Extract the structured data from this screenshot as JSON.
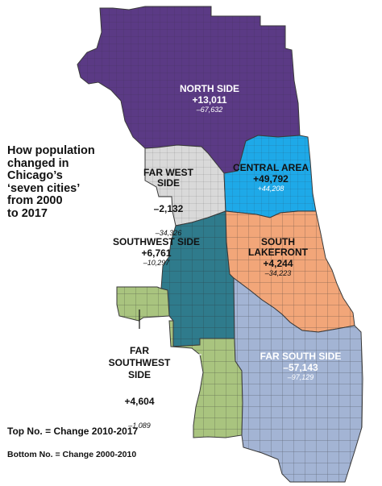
{
  "headline": "How population\nchanged in\nChicago’s\n‘seven cities’\nfrom 2000\nto 2017",
  "legend": {
    "top": "Top No. = Change 2010-2017",
    "bottom": "Bottom No. = Change 2000-2010"
  },
  "colors": {
    "north_side": "#5b3a85",
    "far_west_side": "#d9d9d9",
    "central_area": "#1ea9e8",
    "southwest_side": "#2f7b8c",
    "south_lakefront": "#f2a679",
    "far_southwest_side": "#a9c47f",
    "far_south_side": "#a3b4d4",
    "street_lines": "#3a3a3a"
  },
  "regions": [
    {
      "id": "north_side",
      "name": "NORTH SIDE",
      "change_2010_2017": "+13,011",
      "change_2000_2010": "–67,632"
    },
    {
      "id": "far_west_side",
      "name": "FAR WEST\nSIDE",
      "change_2010_2017": "–2,132",
      "change_2000_2010": "–34,326"
    },
    {
      "id": "central_area",
      "name": "CENTRAL AREA",
      "change_2010_2017": "+49,792",
      "change_2000_2010": "+44,208"
    },
    {
      "id": "southwest_side",
      "name": "SOUTHWEST SIDE",
      "change_2010_2017": "+6,761",
      "change_2000_2010": "–10,297"
    },
    {
      "id": "south_lakefront",
      "name": "SOUTH LAKEFRONT",
      "change_2010_2017": "+4,244",
      "change_2000_2010": "–34,223"
    },
    {
      "id": "far_southwest_side",
      "name": "FAR\nSOUTHWEST\nSIDE",
      "change_2010_2017": "+4,604",
      "change_2000_2010": "–1,089"
    },
    {
      "id": "far_south_side",
      "name": "FAR SOUTH SIDE",
      "change_2010_2017": "–57,143",
      "change_2000_2010": "–97,129"
    }
  ]
}
